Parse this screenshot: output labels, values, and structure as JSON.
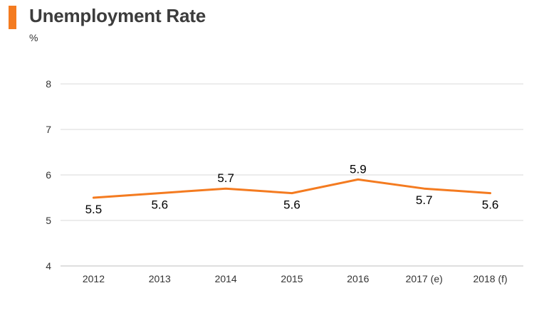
{
  "title": "Unemployment Rate",
  "unit": "%",
  "colors": {
    "accent": "#f47b20",
    "line": "#f47b20",
    "grid": "#d9d9d9"
  },
  "chart_data": {
    "type": "line",
    "title": "Unemployment Rate",
    "ylabel": "%",
    "categories": [
      "2012",
      "2013",
      "2014",
      "2015",
      "2016",
      "2017 (e)",
      "2018 (f)"
    ],
    "values": [
      5.5,
      5.6,
      5.7,
      5.6,
      5.9,
      5.7,
      5.6
    ],
    "data_labels": [
      "5.5",
      "5.6",
      "5.7",
      "5.6",
      "5.9",
      "5.7",
      "5.6"
    ],
    "yticks": [
      "4",
      "5",
      "6",
      "7",
      "8"
    ],
    "ylim": [
      4,
      8
    ],
    "grid": true,
    "legend": "none"
  }
}
